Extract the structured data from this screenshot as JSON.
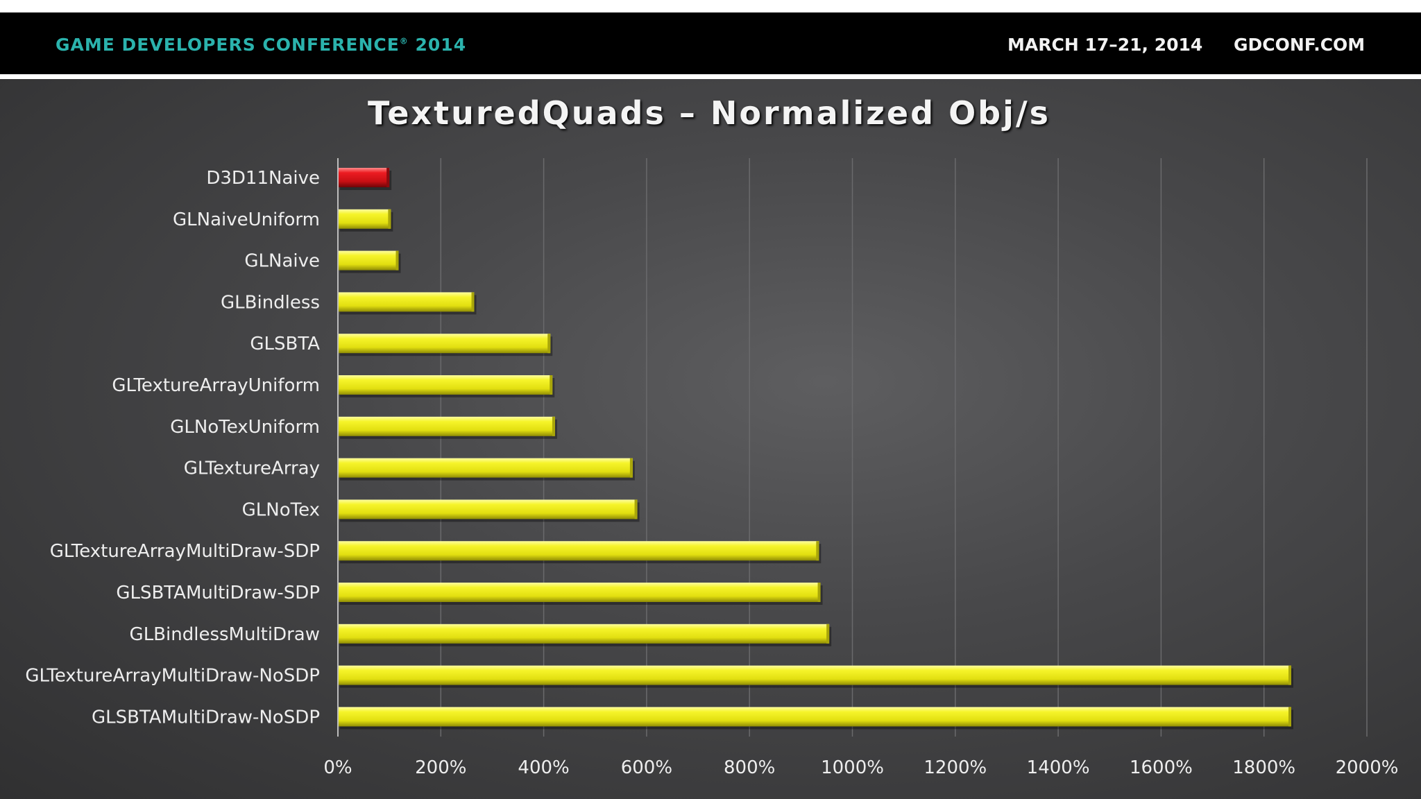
{
  "header": {
    "conference": "GAME DEVELOPERS CONFERENCE",
    "conference_mark": "®",
    "conference_year": "2014",
    "dates": "MARCH 17–21, 2014",
    "url": "GDCONF.COM"
  },
  "colors": {
    "highlight_bar": "#d8141a",
    "normal_bar": "#f2f01e",
    "background": "#48484a",
    "gridline": "#6a6a6c"
  },
  "chart_data": {
    "type": "bar",
    "orientation": "horizontal",
    "title": "TexturedQuads – Normalized Obj/s",
    "xlabel": "",
    "ylabel": "",
    "xlim": [
      0,
      2000
    ],
    "x_ticks": [
      "0%",
      "200%",
      "400%",
      "600%",
      "800%",
      "1000%",
      "1200%",
      "1400%",
      "1600%",
      "1800%",
      "2000%"
    ],
    "grid": "vertical",
    "legend": "none",
    "unit": "%",
    "categories": [
      "D3D11Naive",
      "GLNaiveUniform",
      "GLNaive",
      "GLBindless",
      "GLSBTA",
      "GLTextureArrayUniform",
      "GLNoTexUniform",
      "GLTextureArray",
      "GLNoTex",
      "GLTextureArrayMultiDraw-SDP",
      "GLSBTAMultiDraw-SDP",
      "GLBindlessMultiDraw",
      "GLTextureArrayMultiDraw-NoSDP",
      "GLSBTAMultiDraw-NoSDP"
    ],
    "values": [
      100,
      103,
      118,
      265,
      413,
      417,
      422,
      573,
      582,
      935,
      938,
      955,
      1853,
      1853
    ],
    "highlighted": [
      "D3D11Naive"
    ]
  }
}
